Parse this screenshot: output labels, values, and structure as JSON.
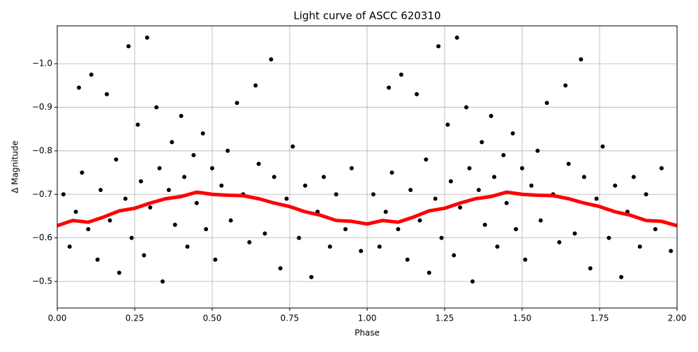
{
  "chart_data": {
    "type": "scatter",
    "title": "Light curve of ASCC 620310",
    "x_label": "Phase",
    "y_label": "Δ Magnitude",
    "xlim": [
      0,
      2
    ],
    "ylim": [
      -0.439,
      -1.087
    ],
    "xticks": [
      {
        "value": 0,
        "label": "0.00"
      },
      {
        "value": 0.25,
        "label": "0.25"
      },
      {
        "value": 0.5,
        "label": "0.50"
      },
      {
        "value": 0.75,
        "label": "0.75"
      },
      {
        "value": 1,
        "label": "1.00"
      },
      {
        "value": 1.25,
        "label": "1.25"
      },
      {
        "value": 1.5,
        "label": "1.50"
      },
      {
        "value": 1.75,
        "label": "1.75"
      },
      {
        "value": 2,
        "label": "2.00"
      }
    ],
    "yticks": [
      {
        "value": -1.0,
        "label": "−1.0"
      },
      {
        "value": -0.9,
        "label": "−0.9"
      },
      {
        "value": -0.8,
        "label": "−0.8"
      },
      {
        "value": -0.7,
        "label": "−0.7"
      },
      {
        "value": -0.6,
        "label": "−0.6"
      },
      {
        "value": -0.5,
        "label": "−0.5"
      }
    ],
    "grid": true,
    "points": {
      "color": "#000000",
      "x": [
        0.02,
        0.04,
        0.06,
        0.07,
        0.08,
        0.1,
        0.11,
        0.13,
        0.14,
        0.16,
        0.17,
        0.19,
        0.2,
        0.22,
        0.23,
        0.24,
        0.26,
        0.27,
        0.28,
        0.29,
        0.3,
        0.32,
        0.33,
        0.34,
        0.36,
        0.37,
        0.38,
        0.4,
        0.41,
        0.42,
        0.44,
        0.45,
        0.47,
        0.48,
        0.5,
        0.51,
        0.53,
        0.55,
        0.56,
        0.58,
        0.6,
        0.62,
        0.64,
        0.65,
        0.67,
        0.69,
        0.7,
        0.72,
        0.74,
        0.76,
        0.78,
        0.8,
        0.82,
        0.84,
        0.86,
        0.88,
        0.9,
        0.93,
        0.95,
        0.98,
        1.02,
        1.04,
        1.06,
        1.07,
        1.08,
        1.1,
        1.11,
        1.13,
        1.14,
        1.16,
        1.17,
        1.19,
        1.2,
        1.22,
        1.23,
        1.24,
        1.26,
        1.27,
        1.28,
        1.29,
        1.3,
        1.32,
        1.33,
        1.34,
        1.36,
        1.37,
        1.38,
        1.4,
        1.41,
        1.42,
        1.44,
        1.45,
        1.47,
        1.48,
        1.5,
        1.51,
        1.53,
        1.55,
        1.56,
        1.58,
        1.6,
        1.62,
        1.64,
        1.65,
        1.67,
        1.69,
        1.7,
        1.72,
        1.74,
        1.76,
        1.78,
        1.8,
        1.82,
        1.84,
        1.86,
        1.88,
        1.9,
        1.93,
        1.95,
        1.98
      ],
      "y": [
        -0.7,
        -0.58,
        -0.66,
        -0.945,
        -0.75,
        -0.62,
        -0.975,
        -0.55,
        -0.71,
        -0.93,
        -0.64,
        -0.78,
        -0.52,
        -0.69,
        -1.04,
        -0.6,
        -0.86,
        -0.73,
        -0.56,
        -1.06,
        -0.67,
        -0.9,
        -0.76,
        -0.5,
        -0.71,
        -0.82,
        -0.63,
        -0.88,
        -0.74,
        -0.58,
        -0.79,
        -0.68,
        -0.84,
        -0.62,
        -0.76,
        -0.55,
        -0.72,
        -0.8,
        -0.64,
        -0.91,
        -0.7,
        -0.59,
        -0.95,
        -0.77,
        -0.61,
        -1.01,
        -0.74,
        -0.53,
        -0.69,
        -0.81,
        -0.6,
        -0.72,
        -0.51,
        -0.66,
        -0.74,
        -0.58,
        -0.7,
        -0.62,
        -0.76,
        -0.57,
        -0.7,
        -0.58,
        -0.66,
        -0.945,
        -0.75,
        -0.62,
        -0.975,
        -0.55,
        -0.71,
        -0.93,
        -0.64,
        -0.78,
        -0.52,
        -0.69,
        -1.04,
        -0.6,
        -0.86,
        -0.73,
        -0.56,
        -1.06,
        -0.67,
        -0.9,
        -0.76,
        -0.5,
        -0.71,
        -0.82,
        -0.63,
        -0.88,
        -0.74,
        -0.58,
        -0.79,
        -0.68,
        -0.84,
        -0.62,
        -0.76,
        -0.55,
        -0.72,
        -0.8,
        -0.64,
        -0.91,
        -0.7,
        -0.59,
        -0.95,
        -0.77,
        -0.61,
        -1.01,
        -0.74,
        -0.53,
        -0.69,
        -0.81,
        -0.6,
        -0.72,
        -0.51,
        -0.66,
        -0.74,
        -0.58,
        -0.7,
        -0.62,
        -0.76,
        -0.57
      ]
    },
    "fit": {
      "color": "#ff0000",
      "x": [
        0,
        0.05,
        0.1,
        0.15,
        0.2,
        0.25,
        0.3,
        0.35,
        0.4,
        0.45,
        0.5,
        0.55,
        0.6,
        0.65,
        0.7,
        0.75,
        0.8,
        0.85,
        0.9,
        0.95,
        1.0,
        1.05,
        1.1,
        1.15,
        1.2,
        1.25,
        1.3,
        1.35,
        1.4,
        1.45,
        1.5,
        1.55,
        1.6,
        1.65,
        1.7,
        1.75,
        1.8,
        1.85,
        1.9,
        1.95,
        2.0
      ],
      "y": [
        -0.628,
        -0.64,
        -0.636,
        -0.648,
        -0.662,
        -0.668,
        -0.68,
        -0.69,
        -0.695,
        -0.705,
        -0.7,
        -0.698,
        -0.697,
        -0.69,
        -0.68,
        -0.672,
        -0.66,
        -0.652,
        -0.64,
        -0.638,
        -0.632,
        -0.64,
        -0.636,
        -0.648,
        -0.662,
        -0.668,
        -0.68,
        -0.69,
        -0.695,
        -0.705,
        -0.7,
        -0.698,
        -0.697,
        -0.69,
        -0.68,
        -0.672,
        -0.66,
        -0.652,
        -0.64,
        -0.638,
        -0.628
      ]
    }
  }
}
